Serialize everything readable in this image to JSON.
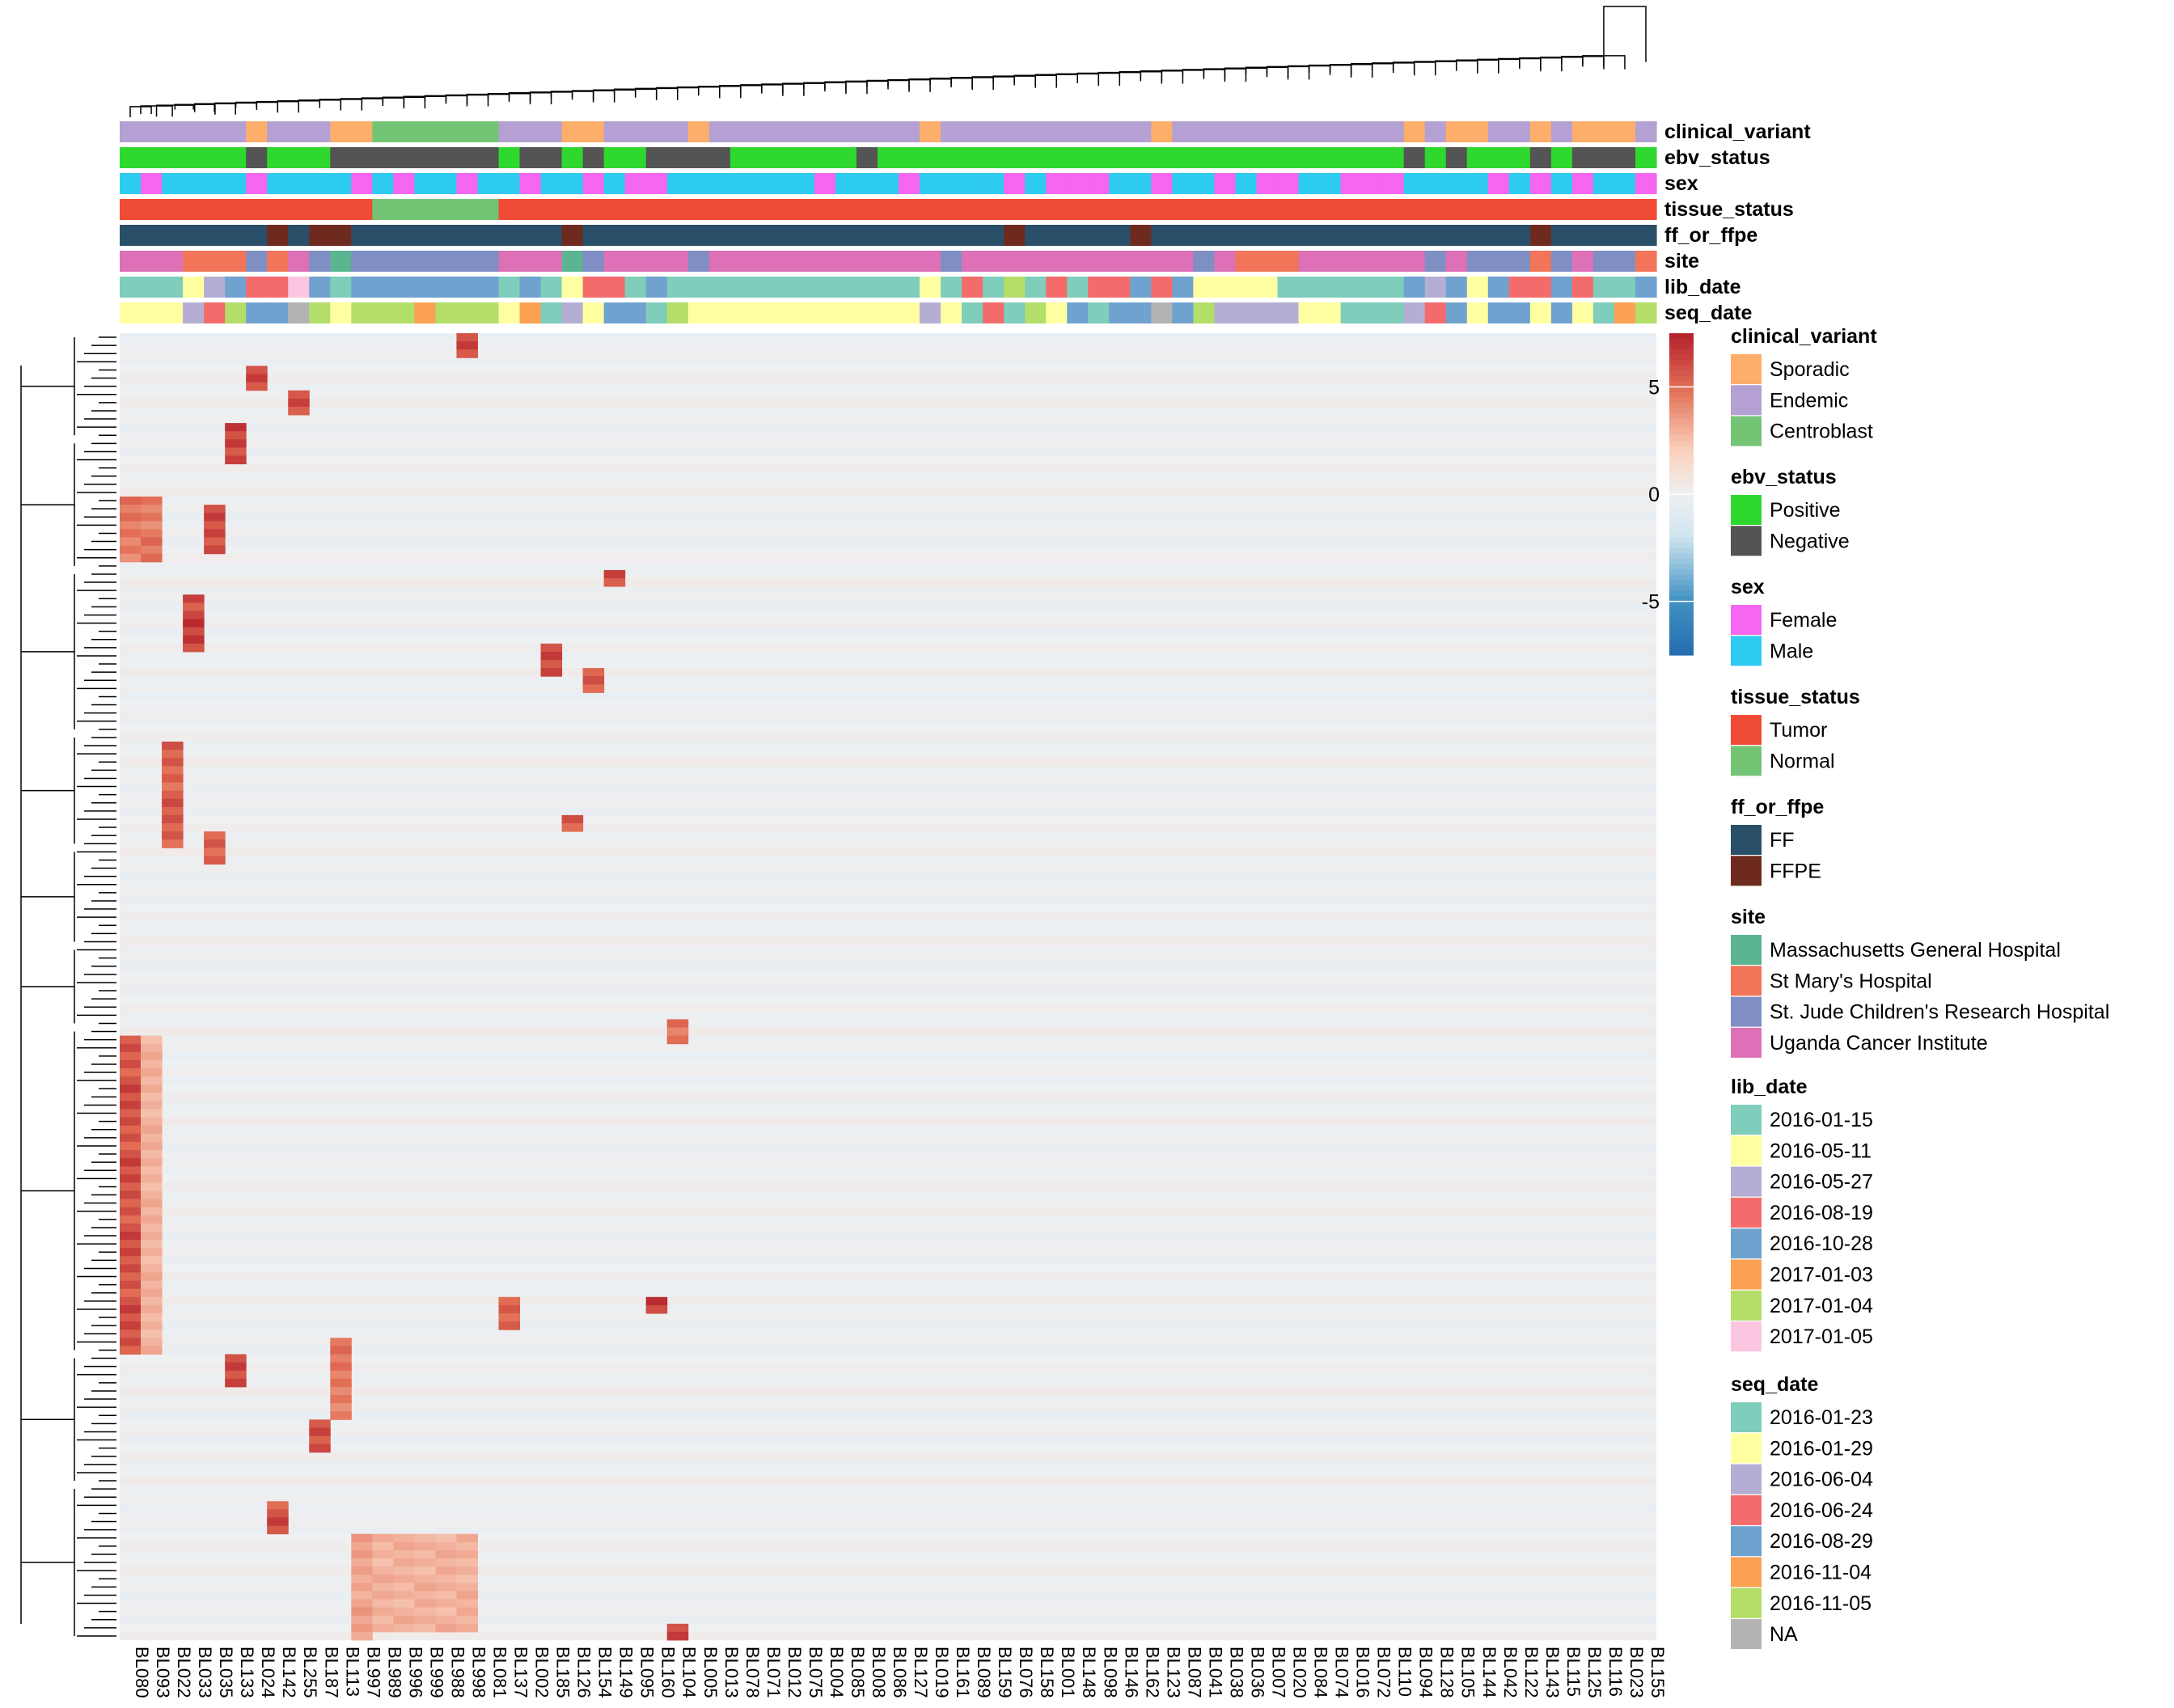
{
  "chart_data": {
    "type": "heatmap",
    "samples": [
      "BL080",
      "BL093",
      "BL022",
      "BL033",
      "BL035",
      "BL133",
      "BL024",
      "BL142",
      "BL255",
      "BL187",
      "BL113",
      "BL997",
      "BL989",
      "BL996",
      "BL999",
      "BL988",
      "BL998",
      "BL081",
      "BL137",
      "BL002",
      "BL185",
      "BL126",
      "BL154",
      "BL149",
      "BL095",
      "BL160",
      "BL104",
      "BL005",
      "BL013",
      "BL078",
      "BL071",
      "BL012",
      "BL075",
      "BL004",
      "BL085",
      "BL008",
      "BL086",
      "BL127",
      "BL019",
      "BL161",
      "BL089",
      "BL159",
      "BL076",
      "BL158",
      "BL001",
      "BL148",
      "BL098",
      "BL146",
      "BL162",
      "BL123",
      "BL087",
      "BL041",
      "BL038",
      "BL036",
      "BL007",
      "BL020",
      "BL084",
      "BL074",
      "BL016",
      "BL072",
      "BL110",
      "BL094",
      "BL128",
      "BL105",
      "BL144",
      "BL042",
      "BL122",
      "BL143",
      "BL115",
      "BL125",
      "BL116",
      "BL023",
      "BL155"
    ],
    "row_count": 160,
    "annotations": [
      {
        "name": "clinical_variant",
        "values": [
          "E",
          "E",
          "E",
          "E",
          "E",
          "E",
          "S",
          "E",
          "E",
          "E",
          "S",
          "S",
          "C",
          "C",
          "C",
          "C",
          "C",
          "C",
          "E",
          "E",
          "E",
          "S",
          "S",
          "E",
          "E",
          "E",
          "E",
          "S",
          "E",
          "E",
          "E",
          "E",
          "E",
          "E",
          "E",
          "E",
          "E",
          "E",
          "S",
          "E",
          "E",
          "E",
          "E",
          "E",
          "E",
          "E",
          "E",
          "E",
          "E",
          "S",
          "E",
          "E",
          "E",
          "E",
          "E",
          "E",
          "E",
          "E",
          "E",
          "E",
          "E",
          "S",
          "E",
          "S",
          "S",
          "E",
          "E",
          "S",
          "E",
          "S",
          "S",
          "S",
          "E"
        ]
      },
      {
        "name": "ebv_status",
        "values": [
          "P",
          "P",
          "P",
          "P",
          "P",
          "P",
          "N",
          "P",
          "P",
          "P",
          "N",
          "N",
          "N",
          "N",
          "N",
          "N",
          "N",
          "N",
          "P",
          "N",
          "N",
          "P",
          "N",
          "P",
          "P",
          "N",
          "N",
          "N",
          "N",
          "P",
          "P",
          "P",
          "P",
          "P",
          "P",
          "N",
          "P",
          "P",
          "P",
          "P",
          "P",
          "P",
          "P",
          "P",
          "P",
          "P",
          "P",
          "P",
          "P",
          "P",
          "P",
          "P",
          "P",
          "P",
          "P",
          "P",
          "P",
          "P",
          "P",
          "P",
          "P",
          "N",
          "P",
          "N",
          "P",
          "P",
          "P",
          "N",
          "P",
          "N",
          "N",
          "N",
          "P"
        ]
      },
      {
        "name": "sex",
        "values": [
          "M",
          "F",
          "M",
          "M",
          "M",
          "M",
          "F",
          "M",
          "M",
          "M",
          "M",
          "F",
          "M",
          "F",
          "M",
          "M",
          "F",
          "M",
          "M",
          "F",
          "M",
          "M",
          "F",
          "M",
          "F",
          "F",
          "M",
          "M",
          "M",
          "M",
          "M",
          "M",
          "M",
          "F",
          "M",
          "M",
          "M",
          "F",
          "M",
          "M",
          "M",
          "M",
          "F",
          "M",
          "F",
          "F",
          "F",
          "M",
          "M",
          "F",
          "M",
          "M",
          "F",
          "M",
          "F",
          "F",
          "M",
          "M",
          "F",
          "F",
          "F",
          "M",
          "M",
          "M",
          "M",
          "F",
          "M",
          "F",
          "M",
          "F",
          "M",
          "M",
          "F"
        ]
      },
      {
        "name": "tissue_status",
        "values": [
          "T",
          "T",
          "T",
          "T",
          "T",
          "T",
          "T",
          "T",
          "T",
          "T",
          "T",
          "T",
          "N",
          "N",
          "N",
          "N",
          "N",
          "N",
          "T",
          "T",
          "T",
          "T",
          "T",
          "T",
          "T",
          "T",
          "T",
          "T",
          "T",
          "T",
          "T",
          "T",
          "T",
          "T",
          "T",
          "T",
          "T",
          "T",
          "T",
          "T",
          "T",
          "T",
          "T",
          "T",
          "T",
          "T",
          "T",
          "T",
          "T",
          "T",
          "T",
          "T",
          "T",
          "T",
          "T",
          "T",
          "T",
          "T",
          "T",
          "T",
          "T",
          "T",
          "T",
          "T",
          "T",
          "T",
          "T",
          "T",
          "T",
          "T",
          "T",
          "T",
          "T"
        ]
      },
      {
        "name": "ff_or_ffpe",
        "values": [
          "FF",
          "FF",
          "FF",
          "FF",
          "FF",
          "FF",
          "FF",
          "FFPE",
          "FF",
          "FFPE",
          "FFPE",
          "FF",
          "FF",
          "FF",
          "FF",
          "FF",
          "FF",
          "FF",
          "FF",
          "FF",
          "FF",
          "FFPE",
          "FF",
          "FF",
          "FF",
          "FF",
          "FF",
          "FF",
          "FF",
          "FF",
          "FF",
          "FF",
          "FF",
          "FF",
          "FF",
          "FF",
          "FF",
          "FF",
          "FF",
          "FF",
          "FF",
          "FF",
          "FFPE",
          "FF",
          "FF",
          "FF",
          "FF",
          "FF",
          "FFPE",
          "FF",
          "FF",
          "FF",
          "FF",
          "FF",
          "FF",
          "FF",
          "FF",
          "FF",
          "FF",
          "FF",
          "FF",
          "FF",
          "FF",
          "FF",
          "FF",
          "FF",
          "FF",
          "FFPE",
          "FF",
          "FF",
          "FF",
          "FF",
          "FF"
        ]
      },
      {
        "name": "site",
        "values": [
          "U",
          "U",
          "U",
          "SM",
          "SM",
          "SM",
          "SJ",
          "SM",
          "U",
          "SJ",
          "MG",
          "SJ",
          "SJ",
          "SJ",
          "SJ",
          "SJ",
          "SJ",
          "SJ",
          "U",
          "U",
          "U",
          "MG",
          "SJ",
          "U",
          "U",
          "U",
          "U",
          "SJ",
          "U",
          "U",
          "U",
          "U",
          "U",
          "U",
          "U",
          "U",
          "U",
          "U",
          "U",
          "SJ",
          "U",
          "U",
          "U",
          "U",
          "U",
          "U",
          "U",
          "U",
          "U",
          "U",
          "U",
          "SJ",
          "U",
          "SM",
          "SM",
          "SM",
          "U",
          "U",
          "U",
          "U",
          "U",
          "U",
          "SJ",
          "U",
          "SJ",
          "SJ",
          "SJ",
          "SM",
          "SJ",
          "U",
          "SJ",
          "SJ",
          "SM"
        ]
      },
      {
        "name": "lib_date",
        "values": [
          "2016-01-15",
          "2016-01-15",
          "2016-01-15",
          "2016-05-11",
          "2016-05-27",
          "2016-10-28",
          "2016-08-19",
          "2016-08-19",
          "2017-01-05",
          "2016-10-28",
          "2016-01-15",
          "2016-10-28",
          "2016-10-28",
          "2016-10-28",
          "2016-10-28",
          "2016-10-28",
          "2016-10-28",
          "2016-10-28",
          "2016-01-15",
          "2016-10-28",
          "2016-01-15",
          "2016-05-11",
          "2016-08-19",
          "2016-08-19",
          "2016-01-15",
          "2016-10-28",
          "2016-01-15",
          "2016-01-15",
          "2016-01-15",
          "2016-01-15",
          "2016-01-15",
          "2016-01-15",
          "2016-01-15",
          "2016-01-15",
          "2016-01-15",
          "2016-01-15",
          "2016-01-15",
          "2016-01-15",
          "2016-05-11",
          "2016-01-15",
          "2016-08-19",
          "2016-01-15",
          "2017-01-04",
          "2016-01-15",
          "2016-08-19",
          "2016-01-15",
          "2016-08-19",
          "2016-08-19",
          "2016-10-28",
          "2016-08-19",
          "2016-10-28",
          "2016-05-11",
          "2016-05-11",
          "2016-05-11",
          "2016-05-11",
          "2016-01-15",
          "2016-01-15",
          "2016-01-15",
          "2016-01-15",
          "2016-01-15",
          "2016-01-15",
          "2016-10-28",
          "2016-05-27",
          "2016-10-28",
          "2016-05-11",
          "2016-10-28",
          "2016-08-19",
          "2016-08-19",
          "2016-10-28",
          "2016-08-19",
          "2016-01-15",
          "2016-01-15",
          "2016-10-28"
        ]
      },
      {
        "name": "seq_date",
        "values": [
          "2016-01-29",
          "2016-01-29",
          "2016-01-29",
          "2016-06-04",
          "2016-06-24",
          "2016-11-05",
          "2016-08-29",
          "2016-08-29",
          "NA",
          "2016-11-05",
          "2016-01-29",
          "2016-11-05",
          "2016-11-05",
          "2016-11-05",
          "2016-11-04",
          "2016-11-05",
          "2016-11-05",
          "2016-11-05",
          "2016-01-29",
          "2016-11-04",
          "2016-01-23",
          "2016-06-04",
          "2016-01-29",
          "2016-08-29",
          "2016-08-29",
          "2016-01-23",
          "2016-11-05",
          "2016-01-29",
          "2016-01-29",
          "2016-01-29",
          "2016-01-29",
          "2016-01-29",
          "2016-01-29",
          "2016-01-29",
          "2016-01-29",
          "2016-01-29",
          "2016-01-29",
          "2016-01-29",
          "2016-06-04",
          "2016-01-29",
          "2016-01-23",
          "2016-06-24",
          "2016-01-23",
          "2016-11-05",
          "2016-01-29",
          "2016-08-29",
          "2016-01-23",
          "2016-08-29",
          "2016-08-29",
          "NA",
          "2016-08-29",
          "2016-11-05",
          "2016-06-04",
          "2016-06-04",
          "2016-06-04",
          "2016-06-04",
          "2016-01-29",
          "2016-01-29",
          "2016-01-23",
          "2016-01-23",
          "2016-01-23",
          "2016-06-04",
          "2016-06-24",
          "2016-08-29",
          "2016-01-29",
          "2016-08-29",
          "2016-08-29",
          "2016-01-29",
          "2016-08-29",
          "2016-01-29",
          "2016-01-23",
          "2016-11-04",
          "2016-11-05"
        ]
      }
    ],
    "clusters": [
      {
        "cols": [
          "BL080"
        ],
        "rows": [
          86,
          124
        ],
        "v": 7.0
      },
      {
        "cols": [
          "BL093"
        ],
        "rows": [
          86,
          124
        ],
        "v": 3.5
      },
      {
        "cols": [
          "BL080",
          "BL093"
        ],
        "rows": [
          20,
          27
        ],
        "v": 5.5
      },
      {
        "cols": [
          "BL022"
        ],
        "rows": [
          50,
          62
        ],
        "v": 6.5
      },
      {
        "cols": [
          "BL035"
        ],
        "rows": [
          21,
          26
        ],
        "v": 7.0
      },
      {
        "cols": [
          "BL033"
        ],
        "rows": [
          32,
          38
        ],
        "v": 7.5
      },
      {
        "cols": [
          "BL035"
        ],
        "rows": [
          61,
          64
        ],
        "v": 6.5
      },
      {
        "cols": [
          "BL133"
        ],
        "rows": [
          11,
          15
        ],
        "v": 7.5
      },
      {
        "cols": [
          "BL133"
        ],
        "rows": [
          125,
          128
        ],
        "v": 7.0
      },
      {
        "cols": [
          "BL024"
        ],
        "rows": [
          4,
          6
        ],
        "v": 7.0
      },
      {
        "cols": [
          "BL142"
        ],
        "rows": [
          143,
          146
        ],
        "v": 7.0
      },
      {
        "cols": [
          "BL255"
        ],
        "rows": [
          7,
          9
        ],
        "v": 7.0
      },
      {
        "cols": [
          "BL187"
        ],
        "rows": [
          133,
          136
        ],
        "v": 7.5
      },
      {
        "cols": [
          "BL113"
        ],
        "rows": [
          123,
          132
        ],
        "v": 5.5
      },
      {
        "cols": [
          "BL997"
        ],
        "rows": [
          147,
          159
        ],
        "v": 4.0
      },
      {
        "cols": [
          "BL989",
          "BL996",
          "BL999",
          "BL988",
          "BL998"
        ],
        "rows": [
          147,
          158
        ],
        "v": 3.5
      },
      {
        "cols": [
          "BL998"
        ],
        "rows": [
          0,
          2
        ],
        "v": 7.0
      },
      {
        "cols": [
          "BL185"
        ],
        "rows": [
          38,
          41
        ],
        "v": 7.0
      },
      {
        "cols": [
          "BL126"
        ],
        "rows": [
          59,
          60
        ],
        "v": 7.0
      },
      {
        "cols": [
          "BL154"
        ],
        "rows": [
          41,
          43
        ],
        "v": 6.5
      },
      {
        "cols": [
          "BL149"
        ],
        "rows": [
          29,
          30
        ],
        "v": 7.0
      },
      {
        "cols": [
          "BL104"
        ],
        "rows": [
          84,
          86
        ],
        "v": 6.0
      },
      {
        "cols": [
          "BL160"
        ],
        "rows": [
          118,
          119
        ],
        "v": 7.5
      },
      {
        "cols": [
          "BL104"
        ],
        "rows": [
          158,
          159
        ],
        "v": 7.0
      },
      {
        "cols": [
          "BL137"
        ],
        "rows": [
          118,
          121
        ],
        "v": 6.0
      }
    ]
  },
  "labels": {
    "annotation_tracks": [
      "clinical_variant",
      "ebv_status",
      "sex",
      "tissue_status",
      "ff_or_ffpe",
      "site",
      "lib_date",
      "seq_date"
    ]
  },
  "colorbar": {
    "ticks": [
      "5",
      "0",
      "-5"
    ]
  },
  "legends": [
    {
      "title": "clinical_variant",
      "items": [
        {
          "label": "Sporadic",
          "color": "#fdae6b"
        },
        {
          "label": "Endemic",
          "color": "#b4a0d2"
        },
        {
          "label": "Centroblast",
          "color": "#74c476"
        }
      ]
    },
    {
      "title": "ebv_status",
      "items": [
        {
          "label": "Positive",
          "color": "#2ed82e"
        },
        {
          "label": "Negative",
          "color": "#545454"
        }
      ]
    },
    {
      "title": "sex",
      "items": [
        {
          "label": "Female",
          "color": "#f567f0"
        },
        {
          "label": "Male",
          "color": "#2ecbf0"
        }
      ]
    },
    {
      "title": "tissue_status",
      "items": [
        {
          "label": "Tumor",
          "color": "#f04b34"
        },
        {
          "label": "Normal",
          "color": "#74c476"
        }
      ]
    },
    {
      "title": "ff_or_ffpe",
      "items": [
        {
          "label": "FF",
          "color": "#2a4f68"
        },
        {
          "label": "FFPE",
          "color": "#6e2a1e"
        }
      ]
    },
    {
      "title": "site",
      "items": [
        {
          "label": "Massachusetts General Hospital",
          "color": "#5ab590"
        },
        {
          "label": "St Mary's Hospital",
          "color": "#f2755a"
        },
        {
          "label": "St. Jude Children's Research Hospital",
          "color": "#7f8fc4"
        },
        {
          "label": "Uganda Cancer Institute",
          "color": "#dd70b6"
        }
      ]
    },
    {
      "title": "lib_date",
      "items": [
        {
          "label": "2016-01-15",
          "color": "#7fcdbb"
        },
        {
          "label": "2016-05-11",
          "color": "#ffffa1"
        },
        {
          "label": "2016-05-27",
          "color": "#b5aed4"
        },
        {
          "label": "2016-08-19",
          "color": "#f46b6b"
        },
        {
          "label": "2016-10-28",
          "color": "#6fa2cf"
        },
        {
          "label": "2017-01-03",
          "color": "#fba152"
        },
        {
          "label": "2017-01-04",
          "color": "#b3de69"
        },
        {
          "label": "2017-01-05",
          "color": "#fcc5e0"
        }
      ]
    },
    {
      "title": "seq_date",
      "items": [
        {
          "label": "2016-01-23",
          "color": "#7fcdbb"
        },
        {
          "label": "2016-01-29",
          "color": "#ffffa1"
        },
        {
          "label": "2016-06-04",
          "color": "#b5aed4"
        },
        {
          "label": "2016-06-24",
          "color": "#f46b6b"
        },
        {
          "label": "2016-08-29",
          "color": "#6fa2cf"
        },
        {
          "label": "2016-11-04",
          "color": "#fba152"
        },
        {
          "label": "2016-11-05",
          "color": "#b3de69"
        },
        {
          "label": "NA",
          "color": "#b3b3b3"
        }
      ]
    }
  ]
}
